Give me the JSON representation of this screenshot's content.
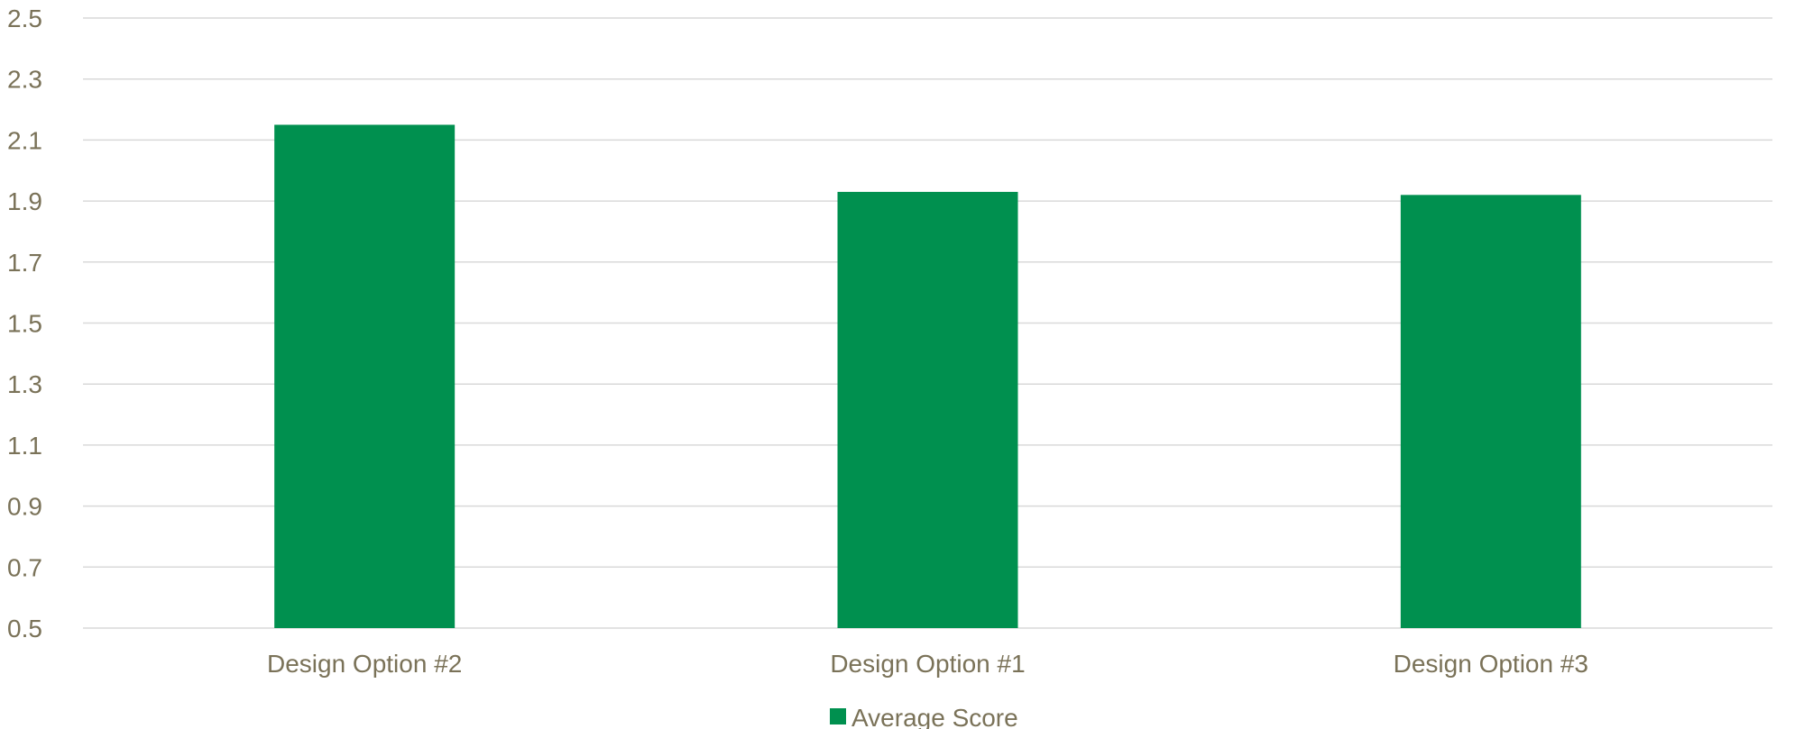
{
  "chart_data": {
    "type": "bar",
    "categories": [
      "Design Option #2",
      "Design Option #1",
      "Design Option #3"
    ],
    "series": [
      {
        "name": "Average Score",
        "values": [
          2.15,
          1.93,
          1.92
        ],
        "color": "#00904f"
      }
    ],
    "ylim": [
      0.5,
      2.5
    ],
    "yticks": [
      "0.5",
      "0.7",
      "0.9",
      "1.1",
      "1.3",
      "1.5",
      "1.7",
      "1.9",
      "2.1",
      "2.3",
      "2.5"
    ],
    "grid": true,
    "legend_position": "bottom-center",
    "colors": {
      "text": "#7a7258",
      "grid": "#d9d9d9"
    }
  }
}
